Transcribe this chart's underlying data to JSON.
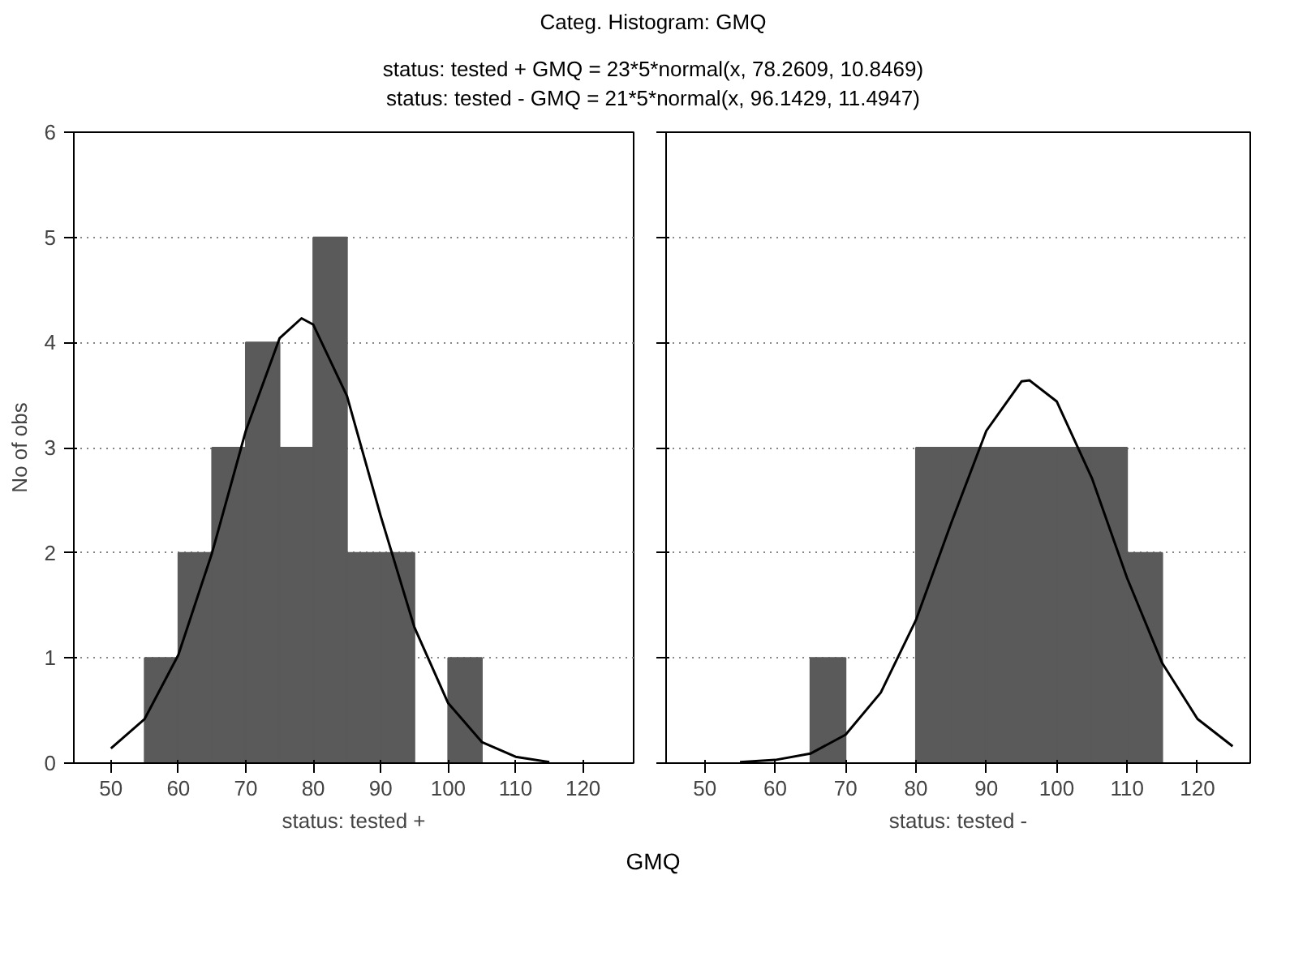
{
  "chart_data": [
    {
      "type": "histogram",
      "title": "Categ. Histogram:     GMQ",
      "subtitle": "status: tested + GMQ = 23*5*normal(x, 78.2609, 10.8469)\nstatus: tested - GMQ = 21*5*normal(x, 96.1429, 11.4947)",
      "xlabel": "status: tested +",
      "ylabel": "No of obs",
      "bins": [
        55,
        60,
        65,
        70,
        75,
        80,
        85,
        90,
        95,
        100,
        105
      ],
      "values": [
        1,
        2,
        3,
        4,
        3,
        5,
        2,
        2,
        0,
        1
      ],
      "color": "#5a5a5a",
      "xlim": [
        44.5,
        127.5
      ],
      "ylim": [
        0,
        6
      ],
      "xticks": [
        50,
        60,
        70,
        80,
        90,
        100,
        110,
        120
      ],
      "yticks": [
        0,
        1,
        2,
        3,
        4,
        5,
        6
      ],
      "grid": "y",
      "series": [
        {
          "type": "line",
          "color": "#000000",
          "x": [
            50,
            55,
            60,
            65,
            70,
            75,
            78.26,
            80,
            85,
            90,
            95,
            100,
            105,
            110,
            115
          ],
          "values": [
            0.14,
            0.42,
            1.03,
            2.0,
            3.16,
            4.04,
            4.23,
            4.17,
            3.49,
            2.35,
            1.29,
            0.57,
            0.2,
            0.06,
            0.01
          ]
        }
      ]
    },
    {
      "type": "histogram",
      "xlabel": "status: tested -",
      "bins": [
        65,
        70,
        75,
        80,
        85,
        90,
        95,
        100,
        105,
        110,
        115
      ],
      "values": [
        1,
        0,
        0,
        3,
        3,
        3,
        3,
        3,
        3,
        2
      ],
      "color": "#5a5a5a",
      "xlim": [
        44.5,
        127.5
      ],
      "ylim": [
        0,
        6
      ],
      "xticks": [
        50,
        60,
        70,
        80,
        90,
        100,
        110,
        120
      ],
      "yticks": [
        0,
        1,
        2,
        3,
        4,
        5,
        6
      ],
      "grid": "y",
      "tick_labels": "x",
      "annotations": [
        "GMQ"
      ],
      "series": [
        {
          "type": "line",
          "color": "#000000",
          "x": [
            55,
            60,
            65,
            70,
            75,
            80,
            85,
            90,
            95,
            96.14,
            100,
            105,
            110,
            115,
            120,
            125
          ],
          "values": [
            0.01,
            0.03,
            0.09,
            0.27,
            0.67,
            1.36,
            2.28,
            3.16,
            3.63,
            3.64,
            3.44,
            2.71,
            1.76,
            0.95,
            0.42,
            0.16
          ]
        }
      ]
    }
  ]
}
